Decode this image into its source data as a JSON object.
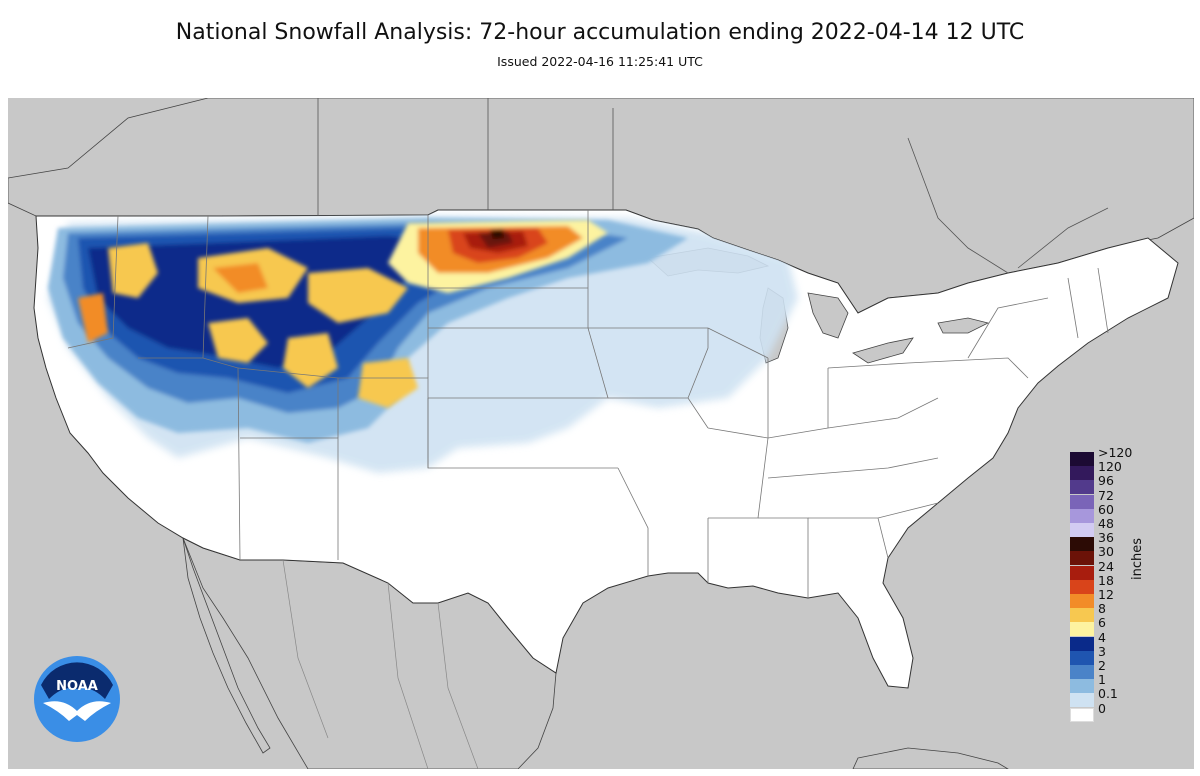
{
  "header": {
    "title": "National Snowfall Analysis: 72-hour accumulation ending 2022-04-14 12 UTC",
    "subtitle": "Issued 2022-04-16 11:25:41 UTC"
  },
  "legend": {
    "units": "inches",
    "levels": [
      {
        "label": ">120",
        "color": "#1c0a33"
      },
      {
        "label": "120",
        "color": "#33195c"
      },
      {
        "label": "96",
        "color": "#523a8c"
      },
      {
        "label": "72",
        "color": "#7a64b8"
      },
      {
        "label": "60",
        "color": "#a797dc"
      },
      {
        "label": "48",
        "color": "#d2cbf2"
      },
      {
        "label": "36",
        "color": "#2c0b05"
      },
      {
        "label": "30",
        "color": "#6b1208"
      },
      {
        "label": "24",
        "color": "#a81d0e"
      },
      {
        "label": "18",
        "color": "#d9441a"
      },
      {
        "label": "12",
        "color": "#f28c28"
      },
      {
        "label": "8",
        "color": "#f7c850"
      },
      {
        "label": "6",
        "color": "#fdf3a0"
      },
      {
        "label": "4",
        "color": "#0a2a8a"
      },
      {
        "label": "3",
        "color": "#1f55b0"
      },
      {
        "label": "2",
        "color": "#4a83c8"
      },
      {
        "label": "1",
        "color": "#8dbbe0"
      },
      {
        "label": "0.1",
        "color": "#cfe2f2"
      },
      {
        "label": "0",
        "color": "#ffffff"
      }
    ]
  },
  "map": {
    "ocean_color": "#c8c8c8",
    "land_color": "#ffffff",
    "border_color": "#555555"
  },
  "logo": {
    "text": "NOAA",
    "icon": "noaa-logo-icon",
    "colors": {
      "outer": "#3a8ee6",
      "inner": "#0b2b6e",
      "bird": "#ffffff"
    }
  }
}
